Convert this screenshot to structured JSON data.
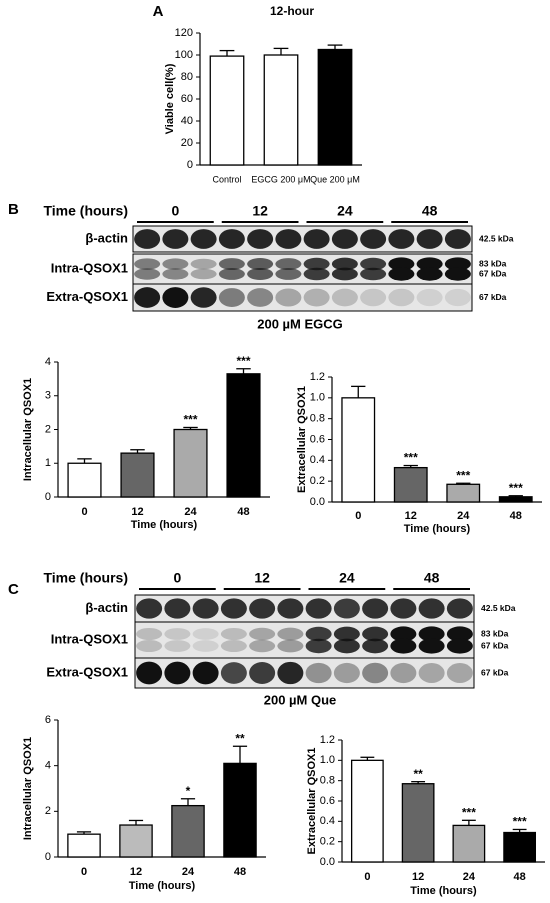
{
  "panel_labels": [
    "A",
    "B",
    "C"
  ],
  "chart_data": [
    {
      "type": "bar",
      "title": "12-hour",
      "ylabel": "Viable cell(%)",
      "categories": [
        "Control",
        "EGCG 200 μM",
        "Que 200 μM"
      ],
      "values": [
        99,
        100,
        105
      ],
      "errors": [
        5,
        6,
        4
      ],
      "colors": [
        "#ffffff",
        "#ffffff",
        "#000000"
      ],
      "ylim": [
        0,
        120
      ],
      "yticks": [
        0,
        20,
        40,
        60,
        80,
        100,
        120
      ]
    },
    {
      "type": "bar",
      "ylabel": "Intracellular QSOX1",
      "xlabel": "Time (hours)",
      "categories": [
        "0",
        "12",
        "24",
        "48"
      ],
      "values": [
        1.0,
        1.3,
        2.0,
        3.65
      ],
      "errors": [
        0.13,
        0.1,
        0.06,
        0.15
      ],
      "annotations": [
        null,
        null,
        "***",
        "***"
      ],
      "colors": [
        "#ffffff",
        "#666666",
        "#aaaaaa",
        "#000000"
      ],
      "ylim": [
        0,
        4
      ],
      "yticks": [
        0,
        1,
        2,
        3,
        4
      ]
    },
    {
      "type": "bar",
      "ylabel": "Extracellular QSOX1",
      "xlabel": "Time (hours)",
      "categories": [
        "0",
        "12",
        "24",
        "48"
      ],
      "values": [
        1.0,
        0.33,
        0.17,
        0.05
      ],
      "errors": [
        0.11,
        0.02,
        0.01,
        0.01
      ],
      "annotations": [
        null,
        "***",
        "***",
        "***"
      ],
      "colors": [
        "#ffffff",
        "#666666",
        "#aaaaaa",
        "#000000"
      ],
      "ylim": [
        0,
        1.2
      ],
      "yticks": [
        {
          "value": 0,
          "label": "0.0"
        },
        0.2,
        0.4,
        0.6,
        0.8,
        {
          "value": 1,
          "label": "1.0"
        },
        1.2
      ]
    },
    {
      "type": "bar",
      "ylabel": "Intracellular QSOX1",
      "xlabel": "Time (hours)",
      "categories": [
        "0",
        "12",
        "24",
        "48"
      ],
      "values": [
        1.0,
        1.4,
        2.25,
        4.1
      ],
      "errors": [
        0.1,
        0.2,
        0.3,
        0.75
      ],
      "annotations": [
        null,
        null,
        "*",
        "**"
      ],
      "colors": [
        "#ffffff",
        "#bbbbbb",
        "#666666",
        "#000000"
      ],
      "ylim": [
        0,
        6
      ],
      "yticks": [
        0,
        2,
        4,
        6
      ]
    },
    {
      "type": "bar",
      "ylabel": "Extracellular QSOX1",
      "xlabel": "Time (hours)",
      "categories": [
        "0",
        "12",
        "24",
        "48"
      ],
      "values": [
        1.0,
        0.77,
        0.36,
        0.29
      ],
      "errors": [
        0.03,
        0.02,
        0.05,
        0.03
      ],
      "annotations": [
        null,
        "**",
        "***",
        "***"
      ],
      "colors": [
        "#ffffff",
        "#666666",
        "#aaaaaa",
        "#000000"
      ],
      "ylim": [
        0,
        1.2
      ],
      "yticks": [
        {
          "value": 0,
          "label": "0.0"
        },
        0.2,
        0.4,
        0.6,
        0.8,
        {
          "value": 1,
          "label": "1.0"
        },
        1.2
      ]
    }
  ],
  "blots": [
    {
      "time_label": "Time (hours)",
      "times": [
        "0",
        "12",
        "24",
        "48"
      ],
      "rows": [
        {
          "label": "β-actin",
          "kda": [
            "42.5 kDa"
          ]
        },
        {
          "label": "Intra-QSOX1",
          "kda": [
            "83 kDa",
            "67 kDa"
          ]
        },
        {
          "label": "Extra-QSOX1",
          "kda": [
            "67 kDa"
          ]
        }
      ],
      "caption": "200 µM EGCG"
    },
    {
      "time_label": "Time (hours)",
      "times": [
        "0",
        "12",
        "24",
        "48"
      ],
      "rows": [
        {
          "label": "β-actin",
          "kda": [
            "42.5 kDa"
          ]
        },
        {
          "label": "Intra-QSOX1",
          "kda": [
            "83 kDa",
            "67 kDa"
          ]
        },
        {
          "label": "Extra-QSOX1",
          "kda": [
            "67 kDa"
          ]
        }
      ],
      "caption": "200 µM Que"
    }
  ]
}
